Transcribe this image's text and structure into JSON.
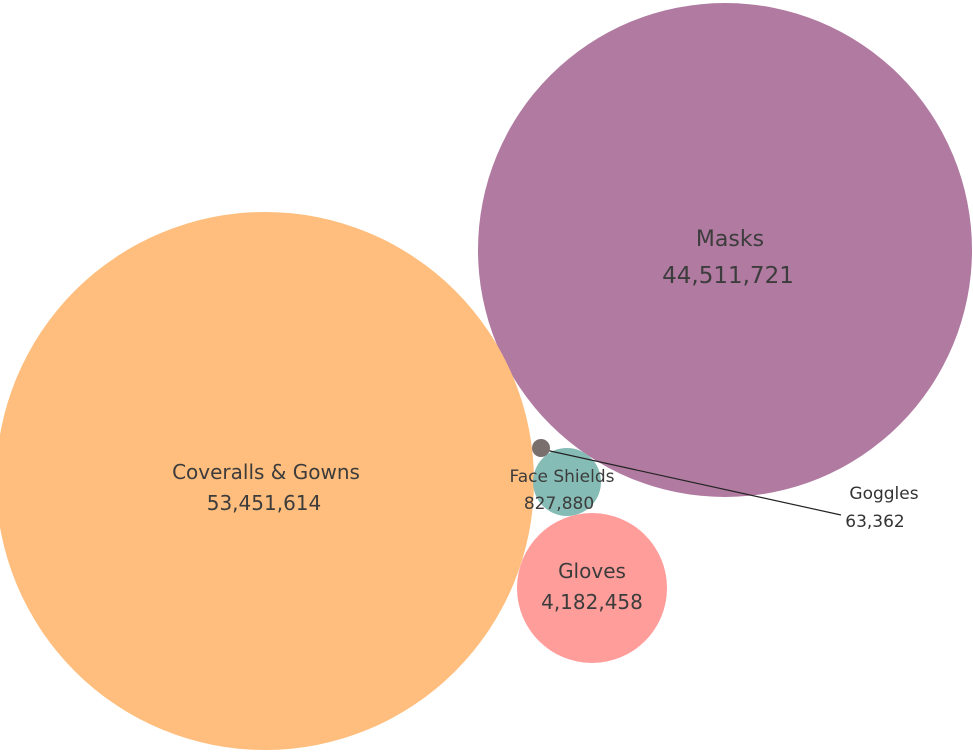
{
  "chart_data": {
    "type": "bubble",
    "title": "",
    "series": [
      {
        "name": "Coveralls & Gowns",
        "value": 53451614,
        "value_label": "53,451,614",
        "color": "#FFBE7D"
      },
      {
        "name": "Masks",
        "value": 44511721,
        "value_label": "44,511,721",
        "color": "#B07AA1"
      },
      {
        "name": "Gloves",
        "value": 4182458,
        "value_label": "4,182,458",
        "color": "#FF9D9A"
      },
      {
        "name": "Face Shields",
        "value": 827880,
        "value_label": "827,880",
        "color": "#86BCB6"
      },
      {
        "name": "Goggles",
        "value": 63362,
        "value_label": "63,362",
        "color": "#79706E"
      }
    ]
  }
}
